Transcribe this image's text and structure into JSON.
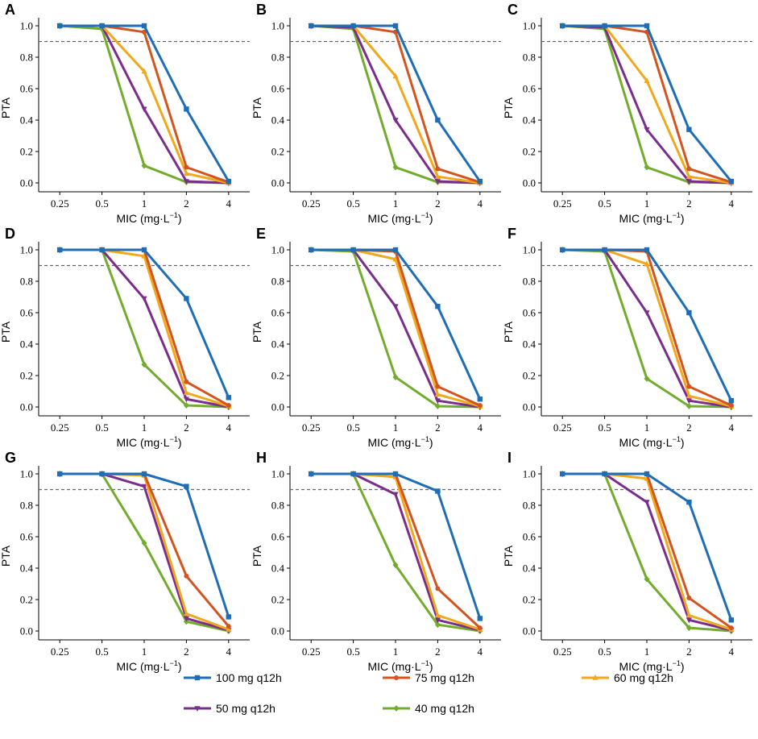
{
  "chart_data": {
    "type": "line",
    "x": [
      "0.25",
      "0.5",
      "1",
      "2",
      "4"
    ],
    "xlabel": "MIC (mg·L",
    "xlabel_sup": "−1",
    "xlabel_close": ")",
    "ylabel": "PTA",
    "ylim": [
      0,
      1.0
    ],
    "yticks": [
      "0.0",
      "0.2",
      "0.4",
      "0.6",
      "0.8",
      "1.0"
    ],
    "target_line": 0.9,
    "series_meta": [
      {
        "name": "100 mg q12h",
        "color": "#1f6eb5",
        "marker": "square"
      },
      {
        "name": "75 mg q12h",
        "color": "#d4541f",
        "marker": "circle"
      },
      {
        "name": "60 mg q12h",
        "color": "#f0a81c",
        "marker": "triangle-up"
      },
      {
        "name": "50 mg q12h",
        "color": "#7b2d8b",
        "marker": "triangle-down"
      },
      {
        "name": "40 mg q12h",
        "color": "#72ac2d",
        "marker": "diamond"
      }
    ],
    "panels": [
      {
        "label": "A",
        "series": [
          [
            1.0,
            1.0,
            1.0,
            0.47,
            0.01
          ],
          [
            1.0,
            1.0,
            0.96,
            0.1,
            0.005
          ],
          [
            1.0,
            1.0,
            0.71,
            0.06,
            0.0
          ],
          [
            1.0,
            1.0,
            0.47,
            0.01,
            0.0
          ],
          [
            1.0,
            0.98,
            0.11,
            0.005,
            0.0
          ]
        ]
      },
      {
        "label": "B",
        "series": [
          [
            1.0,
            1.0,
            1.0,
            0.4,
            0.01
          ],
          [
            1.0,
            1.0,
            0.96,
            0.09,
            0.005
          ],
          [
            1.0,
            1.0,
            0.68,
            0.04,
            0.0
          ],
          [
            1.0,
            0.99,
            0.4,
            0.01,
            0.0
          ],
          [
            1.0,
            0.98,
            0.1,
            0.005,
            0.0
          ]
        ]
      },
      {
        "label": "C",
        "series": [
          [
            1.0,
            1.0,
            1.0,
            0.34,
            0.01
          ],
          [
            1.0,
            1.0,
            0.96,
            0.09,
            0.005
          ],
          [
            1.0,
            1.0,
            0.65,
            0.04,
            0.0
          ],
          [
            1.0,
            0.99,
            0.34,
            0.01,
            0.0
          ],
          [
            1.0,
            0.98,
            0.1,
            0.005,
            0.0
          ]
        ]
      },
      {
        "label": "D",
        "series": [
          [
            1.0,
            1.0,
            1.0,
            0.69,
            0.06
          ],
          [
            1.0,
            1.0,
            1.0,
            0.16,
            0.01
          ],
          [
            1.0,
            1.0,
            0.96,
            0.09,
            0.005
          ],
          [
            1.0,
            1.0,
            0.69,
            0.05,
            0.0
          ],
          [
            1.0,
            1.0,
            0.27,
            0.01,
            0.0
          ]
        ]
      },
      {
        "label": "E",
        "series": [
          [
            1.0,
            1.0,
            1.0,
            0.64,
            0.05
          ],
          [
            1.0,
            1.0,
            0.99,
            0.13,
            0.01
          ],
          [
            1.0,
            1.0,
            0.94,
            0.08,
            0.005
          ],
          [
            1.0,
            1.0,
            0.64,
            0.04,
            0.0
          ],
          [
            1.0,
            0.99,
            0.19,
            0.005,
            0.0
          ]
        ]
      },
      {
        "label": "F",
        "series": [
          [
            1.0,
            1.0,
            1.0,
            0.6,
            0.04
          ],
          [
            1.0,
            1.0,
            0.99,
            0.13,
            0.01
          ],
          [
            1.0,
            1.0,
            0.91,
            0.07,
            0.005
          ],
          [
            1.0,
            1.0,
            0.6,
            0.04,
            0.0
          ],
          [
            1.0,
            0.99,
            0.18,
            0.005,
            0.0
          ]
        ]
      },
      {
        "label": "G",
        "series": [
          [
            1.0,
            1.0,
            1.0,
            0.92,
            0.09
          ],
          [
            1.0,
            1.0,
            1.0,
            0.35,
            0.03
          ],
          [
            1.0,
            1.0,
            0.99,
            0.11,
            0.01
          ],
          [
            1.0,
            1.0,
            0.92,
            0.08,
            0.005
          ],
          [
            1.0,
            1.0,
            0.56,
            0.06,
            0.0
          ]
        ]
      },
      {
        "label": "H",
        "series": [
          [
            1.0,
            1.0,
            1.0,
            0.89,
            0.08
          ],
          [
            1.0,
            1.0,
            1.0,
            0.27,
            0.02
          ],
          [
            1.0,
            1.0,
            0.98,
            0.1,
            0.01
          ],
          [
            1.0,
            1.0,
            0.87,
            0.07,
            0.005
          ],
          [
            1.0,
            1.0,
            0.42,
            0.04,
            0.0
          ]
        ]
      },
      {
        "label": "I",
        "series": [
          [
            1.0,
            1.0,
            1.0,
            0.82,
            0.07
          ],
          [
            1.0,
            1.0,
            1.0,
            0.21,
            0.02
          ],
          [
            1.0,
            1.0,
            0.97,
            0.1,
            0.01
          ],
          [
            1.0,
            1.0,
            0.82,
            0.07,
            0.005
          ],
          [
            1.0,
            1.0,
            0.33,
            0.02,
            0.0
          ]
        ]
      }
    ]
  },
  "legend": {
    "items": [
      {
        "label": "100 mg q12h"
      },
      {
        "label": "75 mg q12h"
      },
      {
        "label": "60 mg q12h"
      },
      {
        "label": "50 mg q12h"
      },
      {
        "label": "40 mg q12h"
      }
    ]
  }
}
